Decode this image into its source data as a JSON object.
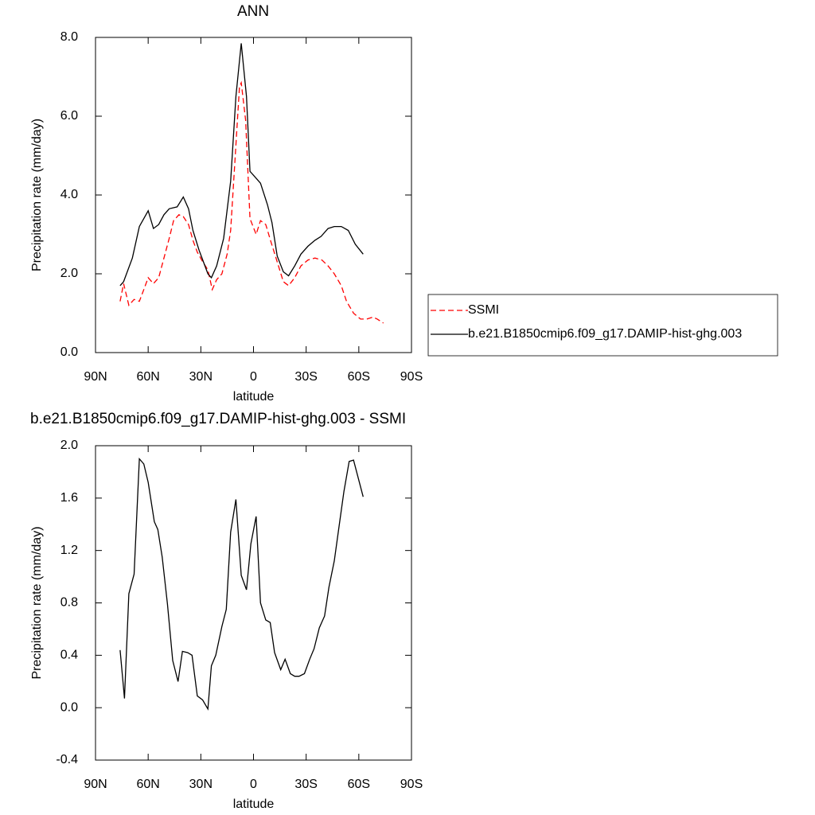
{
  "chart_data": [
    {
      "type": "line",
      "title": "ANN",
      "x_label": "latitude",
      "y_label": "Precipitation rate (mm/day)",
      "xlim": [
        90,
        -90
      ],
      "xticks": [
        {
          "value": 90,
          "label": "90N"
        },
        {
          "value": 60,
          "label": "60N"
        },
        {
          "value": 30,
          "label": "30N"
        },
        0,
        {
          "value": -30,
          "label": "30S"
        },
        {
          "value": -60,
          "label": "60S"
        },
        {
          "value": -90,
          "label": "90S"
        }
      ],
      "ylim": [
        0,
        8
      ],
      "yticks": [
        {
          "value": 0,
          "label": "0.0"
        },
        {
          "value": 2,
          "label": "2.0"
        },
        {
          "value": 4,
          "label": "4.0"
        },
        {
          "value": 6,
          "label": "6.0"
        },
        {
          "value": 8,
          "label": "8.0"
        }
      ],
      "legend": "right",
      "series": [
        {
          "name": "SSMI",
          "color": "#ff0000",
          "style": "dashed",
          "x": [
            76,
            74,
            71,
            68,
            65,
            62.5,
            60,
            57,
            54,
            51,
            48,
            45.5,
            42.5,
            40,
            37,
            34.5,
            32,
            29.5,
            26,
            23.5,
            21,
            18,
            15,
            13,
            10.5,
            8,
            7,
            4.5,
            2,
            -1.5,
            -4,
            -7,
            -10,
            -13.5,
            -17,
            -20,
            -23.5,
            -27,
            -31,
            -35,
            -39,
            -42.5,
            -46,
            -50,
            -53,
            -57,
            -61,
            -64.5,
            -68,
            -70.5,
            -74
          ],
          "values": [
            1.3,
            1.75,
            1.2,
            1.35,
            1.3,
            1.6,
            1.9,
            1.75,
            1.9,
            2.4,
            2.9,
            3.35,
            3.5,
            3.45,
            3.25,
            2.85,
            2.55,
            2.35,
            2.1,
            1.6,
            1.85,
            2.0,
            2.5,
            3.1,
            4.9,
            6.75,
            6.85,
            5.9,
            3.4,
            3.0,
            3.35,
            3.25,
            2.8,
            2.3,
            1.8,
            1.7,
            1.9,
            2.2,
            2.35,
            2.4,
            2.35,
            2.2,
            2.0,
            1.7,
            1.3,
            1.0,
            0.85,
            0.85,
            0.9,
            0.85,
            0.75
          ]
        },
        {
          "name": "b.e21.B1850cmip6.f09_g17.DAMIP-hist-ghg.003",
          "color": "#000000",
          "style": "solid",
          "x": [
            76,
            74,
            69,
            65,
            60,
            57,
            54,
            51,
            48,
            43.5,
            40,
            37,
            34.5,
            31,
            26,
            24,
            21,
            17,
            13,
            10,
            7,
            4,
            2,
            -1,
            -4,
            -8,
            -10.5,
            -13.5,
            -17,
            -20,
            -23.5,
            -27,
            -31,
            -35,
            -38.5,
            -42.5,
            -46,
            -50,
            -54,
            -58,
            -62.5
          ],
          "values": [
            1.7,
            1.8,
            2.4,
            3.2,
            3.6,
            3.15,
            3.25,
            3.5,
            3.65,
            3.7,
            3.95,
            3.65,
            3.1,
            2.6,
            2.0,
            1.9,
            2.2,
            2.9,
            4.35,
            6.5,
            7.85,
            6.5,
            4.6,
            4.45,
            4.3,
            3.75,
            3.3,
            2.45,
            2.05,
            1.95,
            2.2,
            2.5,
            2.7,
            2.85,
            2.95,
            3.15,
            3.2,
            3.2,
            3.1,
            2.75,
            2.5
          ]
        }
      ]
    },
    {
      "type": "line",
      "title": "b.e21.B1850cmip6.f09_g17.DAMIP-hist-ghg.003 - SSMI",
      "x_label": "latitude",
      "y_label": "Precipitation rate (mm/day)",
      "xlim": [
        90,
        -90
      ],
      "xticks": [
        {
          "value": 90,
          "label": "90N"
        },
        {
          "value": 60,
          "label": "60N"
        },
        {
          "value": 30,
          "label": "30N"
        },
        0,
        {
          "value": -30,
          "label": "30S"
        },
        {
          "value": -60,
          "label": "60S"
        },
        {
          "value": -90,
          "label": "90S"
        }
      ],
      "ylim": [
        -0.4,
        2.0
      ],
      "yticks": [
        {
          "value": -0.4,
          "label": "-0.4"
        },
        {
          "value": 0,
          "label": "0.0"
        },
        {
          "value": 0.4,
          "label": "0.4"
        },
        {
          "value": 0.8,
          "label": "0.8"
        },
        {
          "value": 1.2,
          "label": "1.2"
        },
        {
          "value": 1.6,
          "label": "1.6"
        },
        {
          "value": 2.0,
          "label": "2.0"
        }
      ],
      "series": [
        {
          "color": "#000000",
          "style": "solid",
          "x": [
            76,
            73.5,
            71,
            68,
            65,
            62.5,
            60,
            56.5,
            54.5,
            52,
            49,
            46,
            43,
            40.5,
            37.5,
            35,
            32,
            29,
            26,
            24,
            21.5,
            18,
            15.5,
            13,
            10,
            7,
            4,
            1.5,
            -1.5,
            -4,
            -7,
            -9.5,
            -12,
            -15.5,
            -18,
            -21,
            -23.5,
            -26,
            -29,
            -32,
            -34.5,
            -37.5,
            -40.5,
            -43,
            -46,
            -49,
            -51.5,
            -54.5,
            -57,
            -62.5
          ],
          "values": [
            0.44,
            0.07,
            0.87,
            1.02,
            1.9,
            1.86,
            1.72,
            1.42,
            1.36,
            1.15,
            0.79,
            0.36,
            0.2,
            0.43,
            0.42,
            0.4,
            0.09,
            0.06,
            -0.01,
            0.32,
            0.4,
            0.62,
            0.75,
            1.34,
            1.59,
            1.01,
            0.9,
            1.25,
            1.46,
            0.8,
            0.67,
            0.65,
            0.42,
            0.29,
            0.37,
            0.26,
            0.24,
            0.24,
            0.26,
            0.37,
            0.45,
            0.61,
            0.7,
            0.92,
            1.12,
            1.41,
            1.65,
            1.88,
            1.89,
            1.61
          ]
        }
      ]
    }
  ]
}
